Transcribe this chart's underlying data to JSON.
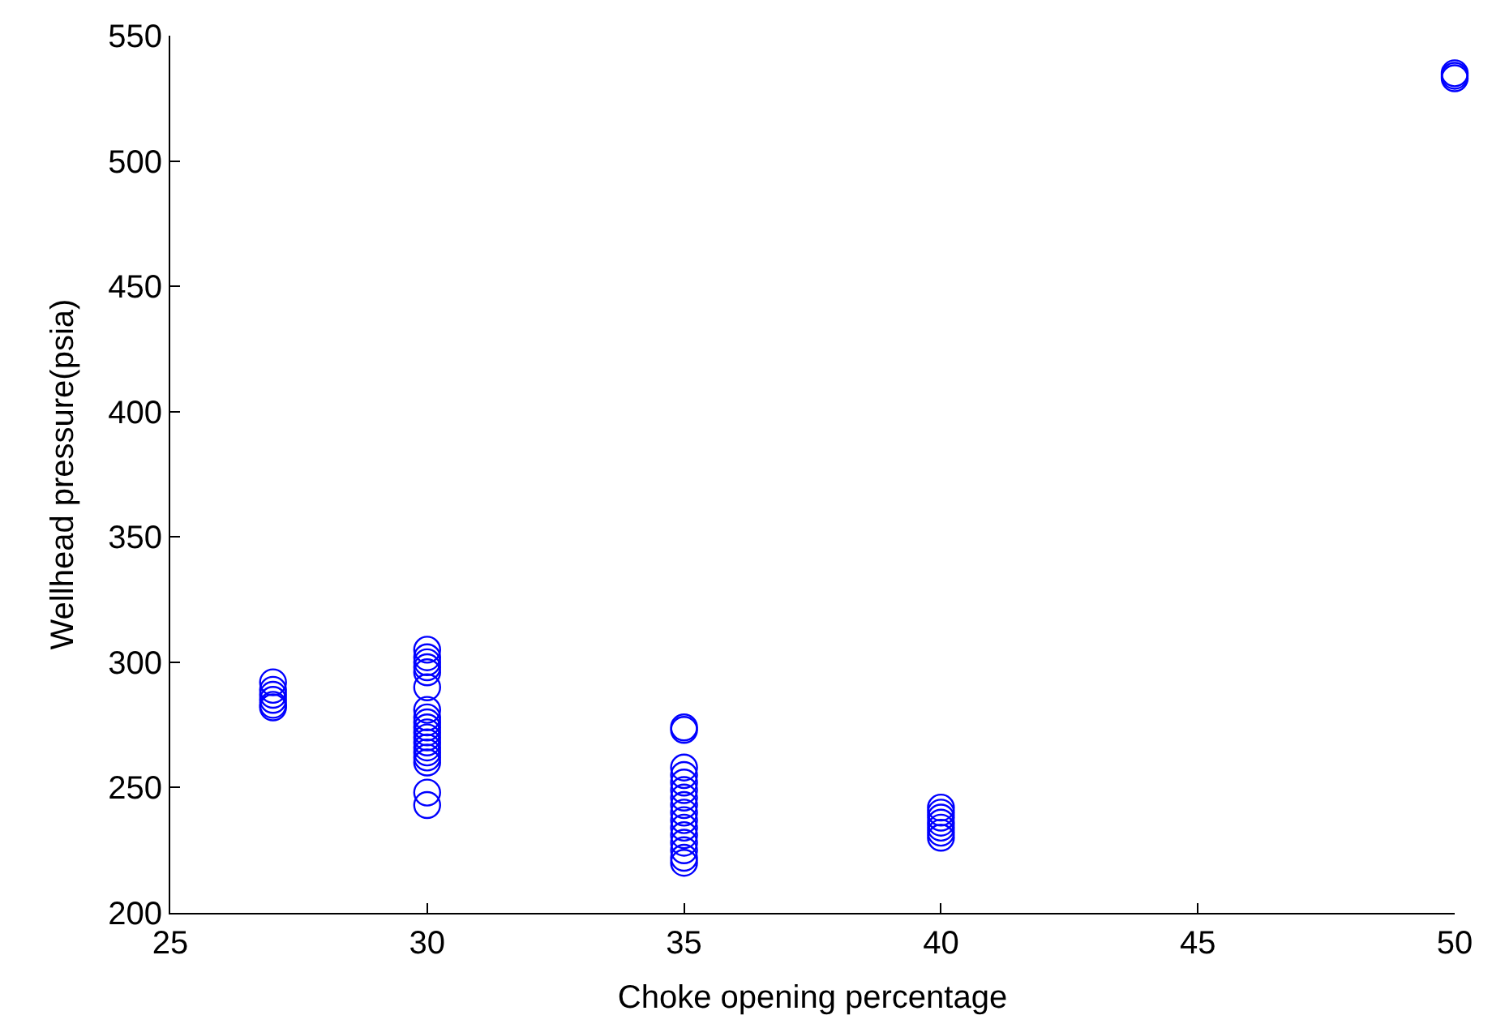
{
  "chart_data": {
    "type": "scatter",
    "xlabel": "Choke opening percentage",
    "ylabel": "Wellhead pressure(psia)",
    "x": [
      27,
      27,
      27,
      27,
      27,
      27,
      30,
      30,
      30,
      30,
      30,
      30,
      30,
      30,
      30,
      30,
      30,
      30,
      30,
      30,
      30,
      30,
      30,
      30,
      30,
      35,
      35,
      35,
      35,
      35,
      35,
      35,
      35,
      35,
      35,
      35,
      35,
      35,
      35,
      35,
      35,
      40,
      40,
      40,
      40,
      40,
      40,
      40,
      50,
      50,
      50
    ],
    "series": [
      {
        "color": "#0000ff",
        "values": [
          292,
          289,
          287,
          285,
          283,
          282,
          305,
          302,
          300,
          298,
          296,
          290,
          281,
          278,
          276,
          274,
          272,
          270,
          268,
          266,
          264,
          262,
          260,
          248,
          243,
          274,
          273,
          258,
          255,
          252,
          249,
          246,
          243,
          240,
          237,
          234,
          231,
          228,
          225,
          222,
          220,
          242,
          240,
          238,
          236,
          234,
          232,
          230,
          535,
          534,
          533
        ]
      }
    ],
    "xlim": [
      25,
      50
    ],
    "xticks": [
      25,
      30,
      35,
      40,
      45,
      50
    ],
    "ylim": [
      200,
      550
    ],
    "yticks": [
      200,
      250,
      300,
      350,
      400,
      450,
      500,
      550
    ],
    "marker": "circle"
  }
}
